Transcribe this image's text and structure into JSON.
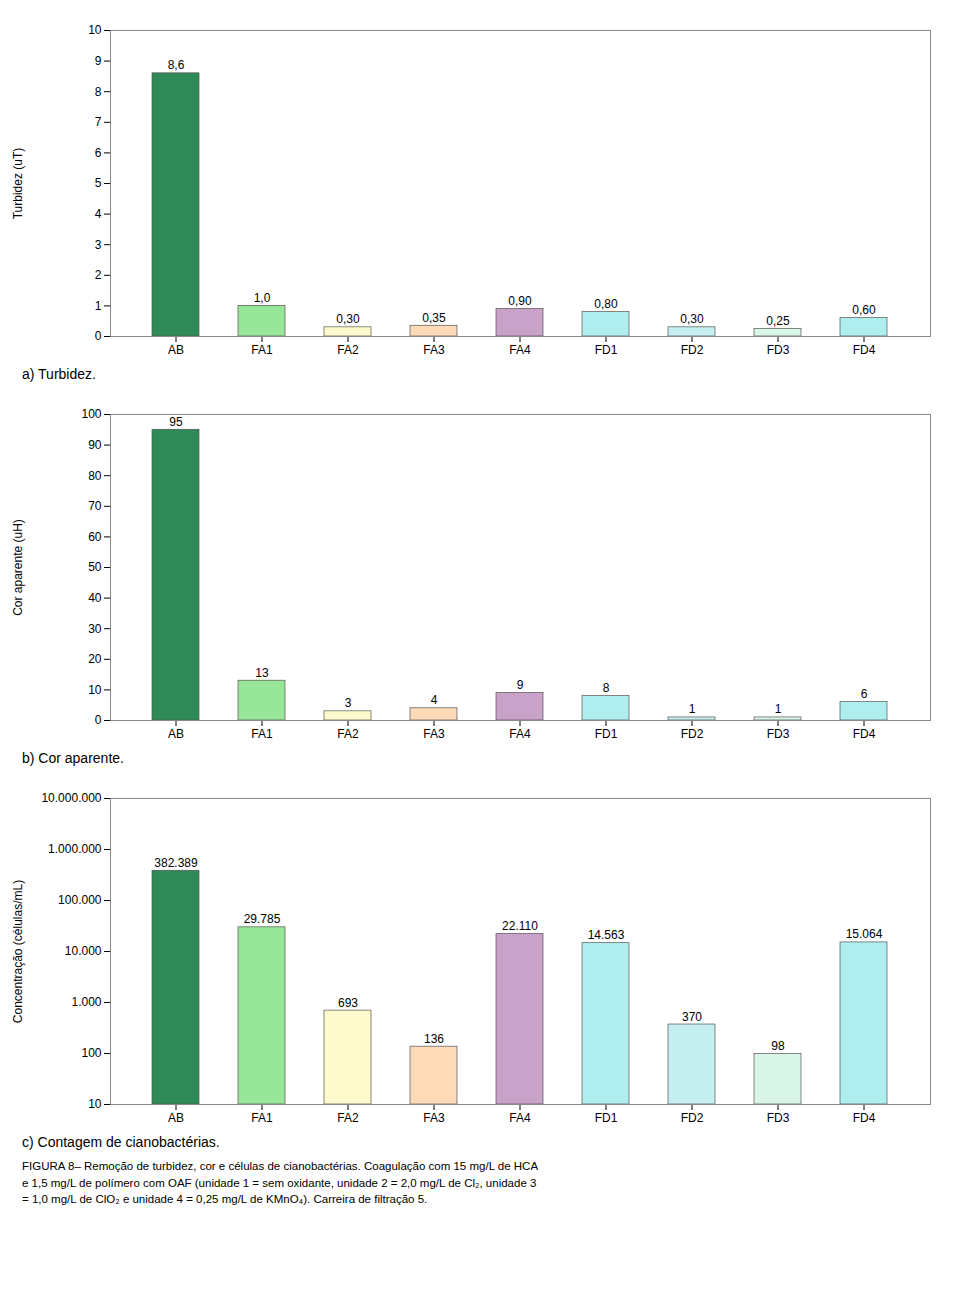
{
  "chart_data": [
    {
      "type": "bar",
      "title": "a) Turbidez.",
      "categories": [
        "AB",
        "FA1",
        "FA2",
        "FA3",
        "FA4",
        "FD1",
        "FD2",
        "FD3",
        "FD4"
      ],
      "values": [
        8.6,
        1.0,
        0.3,
        0.35,
        0.9,
        0.8,
        0.3,
        0.25,
        0.6
      ],
      "value_labels": [
        "8,6",
        "1,0",
        "0,30",
        "0,35",
        "0,90",
        "0,80",
        "0,30",
        "0,25",
        "0,60"
      ],
      "colors": [
        "#2E8B57",
        "#98E698",
        "#FFFACD",
        "#FFDAB9",
        "#C8A2C8",
        "#AFEEEE",
        "#C5EEF0",
        "#D8F5E8",
        "#AFEEEE"
      ],
      "ylabel": "Turbidez (uT)",
      "ylim": [
        0,
        10
      ],
      "yticks": [
        0,
        1,
        2,
        3,
        4,
        5,
        6,
        7,
        8,
        9,
        10
      ],
      "grid": false,
      "data_labels": true
    },
    {
      "type": "bar",
      "title": "b) Cor aparente.",
      "categories": [
        "AB",
        "FA1",
        "FA2",
        "FA3",
        "FA4",
        "FD1",
        "FD2",
        "FD3",
        "FD4"
      ],
      "values": [
        95,
        13,
        3,
        4,
        9,
        8,
        1,
        1,
        6
      ],
      "colors": [
        "#2E8B57",
        "#98E698",
        "#FFFACD",
        "#FFDAB9",
        "#C8A2C8",
        "#AFEEEE",
        "#C5EEF0",
        "#D8F5E8",
        "#AFEEEE"
      ],
      "ylabel": "Cor aparente (uH)",
      "ylim": [
        0,
        100
      ],
      "yticks": [
        0,
        10,
        20,
        30,
        40,
        50,
        60,
        70,
        80,
        90,
        100
      ],
      "grid": false,
      "data_labels": true
    },
    {
      "type": "bar",
      "title": "c) Contagem de cianobactérias.",
      "categories": [
        "AB",
        "FA1",
        "FA2",
        "FA3",
        "FA4",
        "FD1",
        "FD2",
        "FD3",
        "FD4"
      ],
      "values": [
        382389,
        29785,
        693,
        136,
        22110,
        14563,
        370,
        98,
        15064
      ],
      "value_labels": [
        "382.389",
        "29.785",
        "693",
        "136",
        "22.110",
        "14.563",
        "370",
        "98",
        "15.064"
      ],
      "colors": [
        "#2E8B57",
        "#98E698",
        "#FFFACD",
        "#FFDAB9",
        "#C8A2C8",
        "#AFEEEE",
        "#C5EEF0",
        "#D8F5E8",
        "#AFEEEE"
      ],
      "ylabel": "Concentração (células/mL)",
      "log": "y",
      "ylim": [
        10,
        10000000
      ],
      "yticks": [
        10,
        100,
        {
          "value": 1000,
          "label": "1.000"
        },
        {
          "value": 10000,
          "label": "10.000"
        },
        {
          "value": 100000,
          "label": "100.000"
        },
        {
          "value": 1000000,
          "label": "1.000.000"
        },
        {
          "value": 10000000,
          "label": "10.000.000"
        }
      ],
      "grid": false,
      "data_labels": true
    }
  ],
  "caption": [
    "FIGURA 8– Remoção de turbidez, cor e células de cianobactérias. Coagulação com 15 mg/L de HCA",
    "e 1,5 mg/L de polímero com OAF (unidade 1 = sem oxidante, unidade 2 = 2,0 mg/L de Cl₂, unidade 3",
    "= 1,0 mg/L de ClO₂ e unidade 4 = 0,25 mg/L de KMnO₄). Carreira de filtração 5."
  ]
}
